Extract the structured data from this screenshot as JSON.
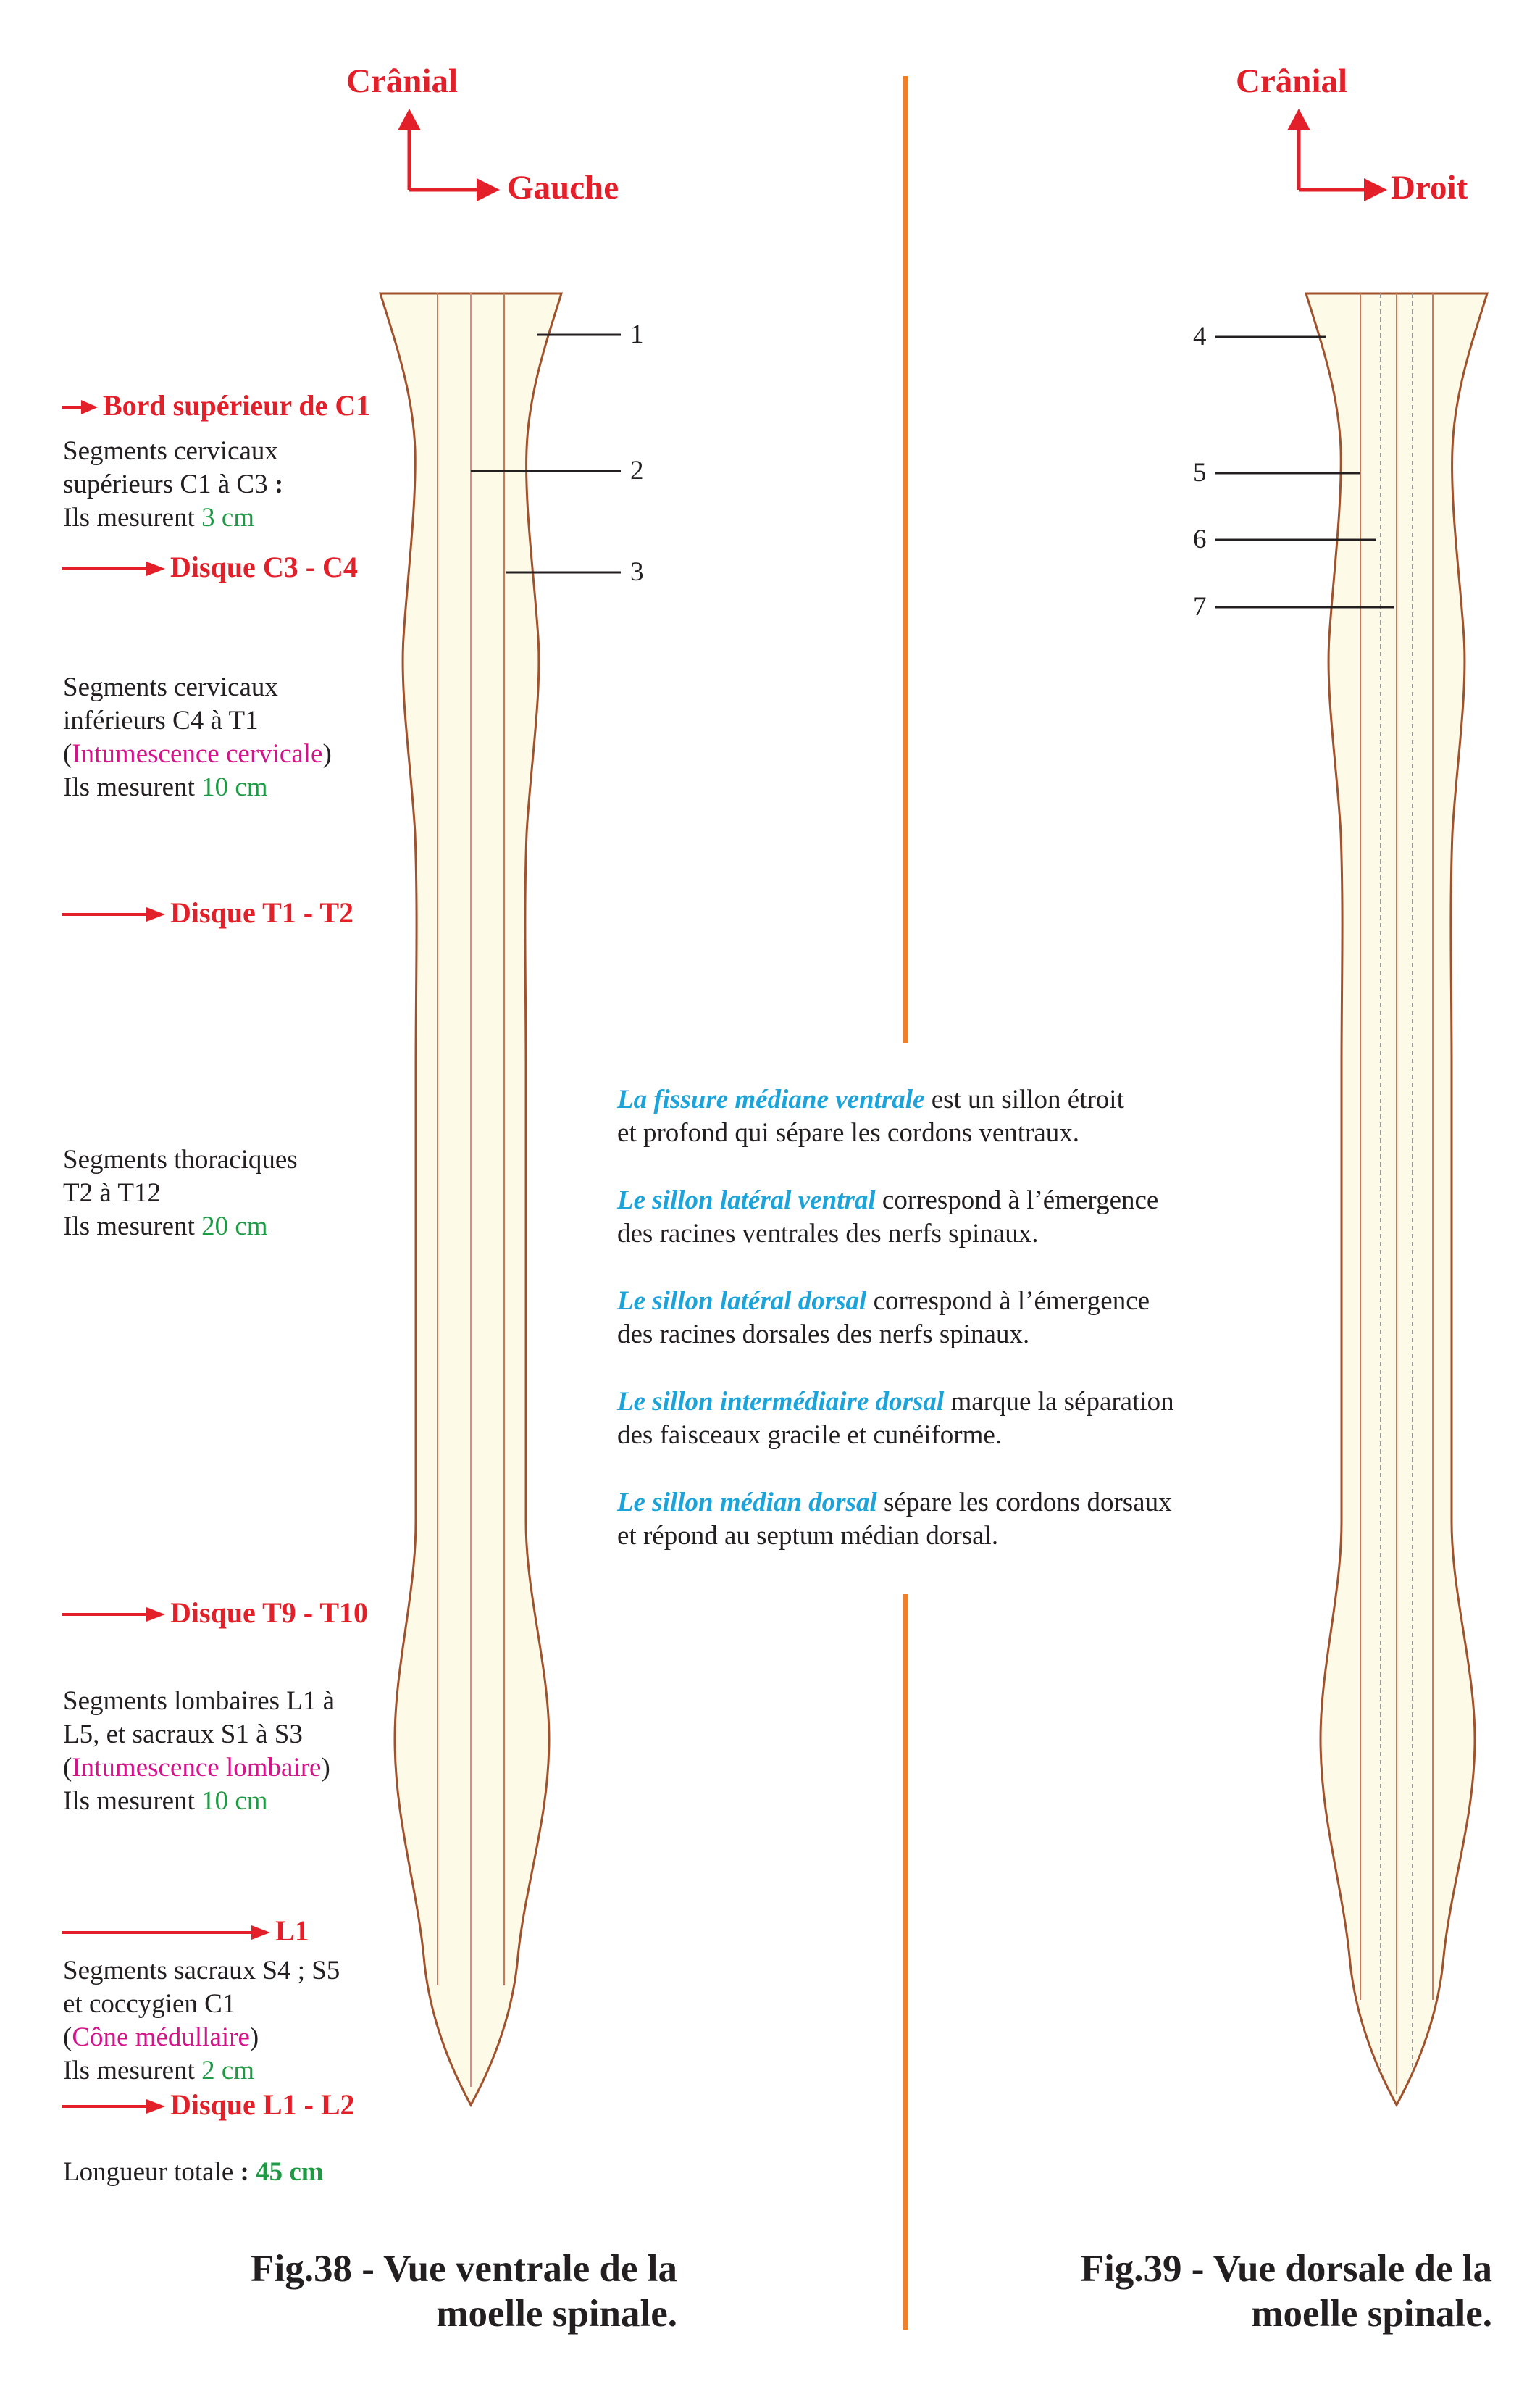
{
  "ventral": {
    "orientation": {
      "up": "Crânial",
      "side": "Gauche"
    },
    "callouts": [
      "1",
      "2",
      "3"
    ],
    "markers": {
      "c1": "Bord supérieur de C1",
      "c3c4": "Disque C3 - C4",
      "t1t2": "Disque T1 - T2",
      "t9t10": "Disque T9 - T10",
      "l1": "L1",
      "l1l2": "Disque L1 - L2"
    },
    "segments": {
      "upper_cervical": {
        "line1": "Segments cervicaux",
        "line2": "supérieurs C1 à C3",
        "colon": " :",
        "measure_label": "Ils mesurent ",
        "measure_value": "3 cm"
      },
      "lower_cervical": {
        "line1": "Segments cervicaux",
        "line2": "inférieurs C4 à T1",
        "paren_open": "(",
        "enlargement": "Intumescence cervicale",
        "paren_close": ")",
        "measure_label": "Ils mesurent ",
        "measure_value": "10 cm"
      },
      "thoracic": {
        "line1": "Segments thoraciques",
        "line2": "T2 à T12",
        "measure_label": "Ils mesurent ",
        "measure_value": "20 cm"
      },
      "lumbar": {
        "line1": "Segments lombaires L1 à",
        "line2": "L5, et sacraux S1 à S3",
        "paren_open": "(",
        "enlargement": "Intumescence lombaire",
        "paren_close": ")",
        "measure_label": "Ils mesurent ",
        "measure_value": "10 cm"
      },
      "sacral": {
        "line1": "Segments sacraux S4 ; S5",
        "line2": "et coccygien C1",
        "paren_open": "(",
        "enlargement": "Cône médullaire",
        "paren_close": ")",
        "measure_label": "Ils mesurent ",
        "measure_value": "2 cm"
      }
    },
    "total": {
      "label": "Longueur totale ",
      "colon": ":",
      "value": "45 cm"
    },
    "caption": {
      "line1": "Fig.38 - Vue ventrale de la",
      "line2": "moelle spinale."
    }
  },
  "dorsal": {
    "orientation": {
      "up": "Crânial",
      "side": "Droit"
    },
    "callouts": [
      "4",
      "5",
      "6",
      "7"
    ],
    "caption": {
      "line1": "Fig.39 - Vue dorsale de la",
      "line2": "moelle spinale."
    }
  },
  "legend": [
    {
      "term": "La fissure médiane ventrale",
      "rest": " est un sillon étroit",
      "line2": "et profond qui sépare les cordons ventraux."
    },
    {
      "term": "Le sillon latéral ventral",
      "rest": " correspond à l’émergence",
      "line2": "des racines ventrales des nerfs spinaux."
    },
    {
      "term": "Le sillon latéral dorsal",
      "rest": " correspond à l’émergence",
      "line2": "des racines dorsales des nerfs spinaux."
    },
    {
      "term": "Le sillon intermédiaire dorsal",
      "rest": " marque la séparation",
      "line2": "des faisceaux gracile et cunéiforme."
    },
    {
      "term": "Le sillon médian dorsal",
      "rest": " sépare les cordons dorsaux",
      "line2": "et répond au septum médian dorsal."
    }
  ],
  "colors": {
    "marker_red": "#e3202a",
    "measure_green": "#1e9a45",
    "enlargement_magenta": "#d4148a",
    "legend_blue": "#1ca3d9",
    "divider_orange": "#f07f2a",
    "cord_fill": "#fdfbe8",
    "cord_outline": "#a0522d"
  }
}
